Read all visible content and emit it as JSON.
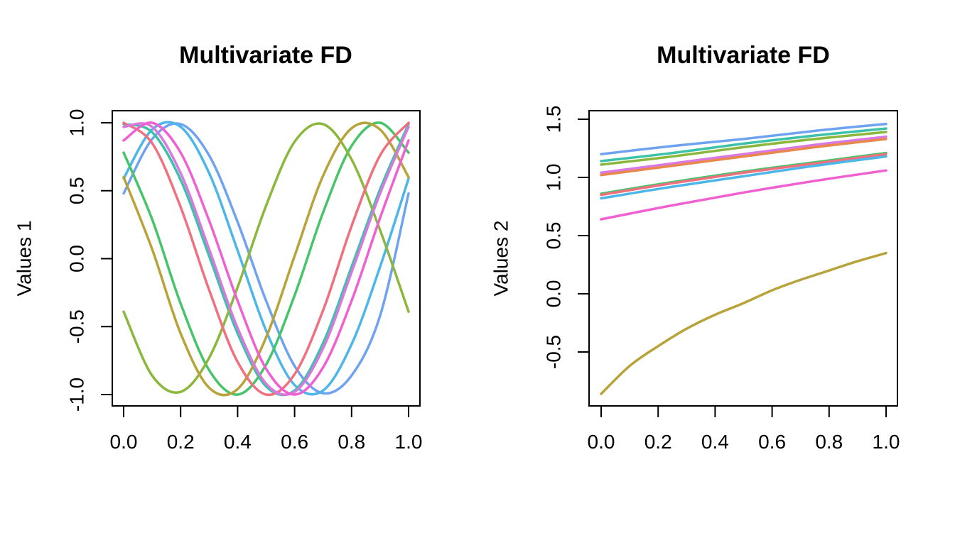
{
  "chart_data": [
    {
      "type": "line",
      "title": "Multivariate FD",
      "xlabel": "",
      "ylabel": "Values 1",
      "xlim": [
        0,
        1
      ],
      "ylim": [
        -1,
        1
      ],
      "xticks": [
        "0.0",
        "0.2",
        "0.4",
        "0.6",
        "0.8",
        "1.0"
      ],
      "yticks": [
        "-1.0",
        "-0.5",
        "0.0",
        "0.5",
        "1.0"
      ],
      "series": [
        {
          "color": "#6FA3F0",
          "x": [
            0,
            0.1,
            0.2,
            0.3,
            0.4,
            0.5,
            0.6,
            0.7,
            0.8,
            0.9,
            1.0
          ],
          "y": [
            0.48,
            0.88,
            0.99,
            0.76,
            0.27,
            -0.31,
            -0.79,
            -0.99,
            -0.86,
            -0.42,
            0.48
          ]
        },
        {
          "color": "#4DB6E8",
          "x": [
            0,
            0.1,
            0.2,
            0.3,
            0.4,
            0.5,
            0.6,
            0.7,
            0.8,
            0.9,
            1.0
          ],
          "y": [
            0.59,
            0.95,
            0.97,
            0.63,
            0.06,
            -0.53,
            -0.93,
            -0.97,
            -0.63,
            -0.06,
            0.59
          ]
        },
        {
          "color": "#3EC1A9",
          "x": [
            0,
            0.1,
            0.2,
            0.3,
            0.4,
            0.5,
            0.6,
            0.7,
            0.8,
            0.9,
            1.0
          ],
          "y": [
            0.99,
            0.93,
            0.58,
            0.02,
            -0.55,
            -0.94,
            -0.97,
            -0.62,
            -0.06,
            0.51,
            0.99
          ]
        },
        {
          "color": "#47C46A",
          "x": [
            0,
            0.1,
            0.2,
            0.3,
            0.4,
            0.5,
            0.6,
            0.7,
            0.8,
            0.9,
            1.0
          ],
          "y": [
            0.78,
            0.29,
            -0.33,
            -0.82,
            -1.0,
            -0.78,
            -0.27,
            0.34,
            0.83,
            1.0,
            0.78
          ]
        },
        {
          "color": "#8BB83C",
          "x": [
            0,
            0.1,
            0.2,
            0.3,
            0.4,
            0.5,
            0.6,
            0.7,
            0.8,
            0.9,
            1.0
          ],
          "y": [
            -0.39,
            -0.86,
            -0.98,
            -0.73,
            -0.21,
            0.39,
            0.86,
            0.99,
            0.73,
            0.21,
            -0.39
          ]
        },
        {
          "color": "#B8A23A",
          "x": [
            0,
            0.1,
            0.2,
            0.3,
            0.4,
            0.5,
            0.6,
            0.7,
            0.8,
            0.9,
            1.0
          ],
          "y": [
            0.6,
            0.07,
            -0.55,
            -0.95,
            -0.96,
            -0.58,
            0.02,
            0.61,
            0.96,
            0.95,
            0.6
          ]
        },
        {
          "color": "#F0707F",
          "x": [
            0,
            0.1,
            0.2,
            0.3,
            0.4,
            0.5,
            0.6,
            0.7,
            0.8,
            0.9,
            1.0
          ],
          "y": [
            1.0,
            0.85,
            0.38,
            -0.23,
            -0.76,
            -1.0,
            -0.85,
            -0.38,
            0.24,
            0.76,
            1.0
          ]
        },
        {
          "color": "#D978E0",
          "x": [
            0,
            0.1,
            0.2,
            0.3,
            0.4,
            0.5,
            0.6,
            0.7,
            0.8,
            0.9,
            1.0
          ],
          "y": [
            0.97,
            0.97,
            0.63,
            0.07,
            -0.51,
            -0.92,
            -0.98,
            -0.66,
            -0.1,
            0.48,
            0.97
          ]
        },
        {
          "color": "#F060D0",
          "x": [
            0,
            0.1,
            0.2,
            0.3,
            0.4,
            0.5,
            0.6,
            0.7,
            0.8,
            0.9,
            1.0
          ],
          "y": [
            0.87,
            1.0,
            0.78,
            0.28,
            -0.31,
            -0.81,
            -1.0,
            -0.8,
            -0.31,
            0.3,
            0.87
          ]
        }
      ]
    },
    {
      "type": "line",
      "title": "Multivariate FD",
      "xlabel": "",
      "ylabel": "Values 2",
      "xlim": [
        0,
        1
      ],
      "ylim": [
        -0.85,
        1.5
      ],
      "xticks": [
        "0.0",
        "0.2",
        "0.4",
        "0.6",
        "0.8",
        "1.0"
      ],
      "yticks": [
        "-0.5",
        "0.0",
        "0.5",
        "1.0",
        "1.5"
      ],
      "series": [
        {
          "color": "#6FA3F0",
          "x": [
            0,
            0.25,
            0.5,
            0.75,
            1.0
          ],
          "y": [
            1.2,
            1.27,
            1.33,
            1.4,
            1.46
          ]
        },
        {
          "color": "#3EC1A9",
          "x": [
            0,
            0.25,
            0.5,
            0.75,
            1.0
          ],
          "y": [
            1.14,
            1.21,
            1.29,
            1.36,
            1.42
          ]
        },
        {
          "color": "#8BB83C",
          "x": [
            0,
            0.25,
            0.5,
            0.75,
            1.0
          ],
          "y": [
            1.11,
            1.18,
            1.26,
            1.33,
            1.39
          ]
        },
        {
          "color": "#D978E0",
          "x": [
            0,
            0.25,
            0.5,
            0.75,
            1.0
          ],
          "y": [
            1.04,
            1.12,
            1.2,
            1.28,
            1.35
          ]
        },
        {
          "color": "#E8884A",
          "x": [
            0,
            0.25,
            0.5,
            0.75,
            1.0
          ],
          "y": [
            1.02,
            1.1,
            1.18,
            1.26,
            1.33
          ]
        },
        {
          "color": "#47C46A",
          "x": [
            0,
            0.25,
            0.5,
            0.75,
            1.0
          ],
          "y": [
            0.86,
            0.96,
            1.05,
            1.13,
            1.21
          ]
        },
        {
          "color": "#F0707F",
          "x": [
            0,
            0.25,
            0.5,
            0.75,
            1.0
          ],
          "y": [
            0.85,
            0.95,
            1.04,
            1.12,
            1.2
          ]
        },
        {
          "color": "#4DB6E8",
          "x": [
            0,
            0.25,
            0.5,
            0.75,
            1.0
          ],
          "y": [
            0.82,
            0.92,
            1.01,
            1.1,
            1.18
          ]
        },
        {
          "color": "#F060D0",
          "x": [
            0,
            0.25,
            0.5,
            0.75,
            1.0
          ],
          "y": [
            0.64,
            0.76,
            0.87,
            0.97,
            1.06
          ]
        },
        {
          "color": "#B8A23A",
          "x": [
            0,
            0.1,
            0.2,
            0.3,
            0.4,
            0.5,
            0.6,
            0.7,
            0.8,
            0.9,
            1.0
          ],
          "y": [
            -0.86,
            -0.62,
            -0.45,
            -0.3,
            -0.18,
            -0.08,
            0.03,
            0.12,
            0.2,
            0.28,
            0.35
          ]
        }
      ]
    }
  ]
}
